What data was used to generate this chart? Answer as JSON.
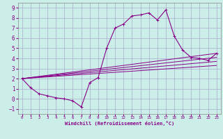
{
  "xlabel": "Windchill (Refroidissement éolien,°C)",
  "bg_color": "#cceee8",
  "grid_color": "#aaaacc",
  "line_color": "#880088",
  "xlim": [
    -0.5,
    23.5
  ],
  "ylim": [
    -1.5,
    9.5
  ],
  "xticks": [
    0,
    1,
    2,
    3,
    4,
    5,
    6,
    7,
    8,
    9,
    10,
    11,
    12,
    13,
    14,
    15,
    16,
    17,
    18,
    19,
    20,
    21,
    22,
    23
  ],
  "yticks": [
    -1,
    0,
    1,
    2,
    3,
    4,
    5,
    6,
    7,
    8,
    9
  ],
  "main_line_x": [
    0,
    1,
    2,
    3,
    4,
    5,
    6,
    7,
    8,
    9,
    10,
    11,
    12,
    13,
    14,
    15,
    16,
    17,
    18,
    19,
    20,
    21,
    22,
    23
  ],
  "main_line_y": [
    2.0,
    1.1,
    0.5,
    0.3,
    0.1,
    0.0,
    -0.2,
    -0.8,
    1.6,
    2.1,
    5.0,
    7.0,
    7.4,
    8.2,
    8.3,
    8.5,
    7.8,
    8.8,
    6.2,
    4.8,
    4.1,
    4.0,
    3.8,
    4.5
  ],
  "diag_lines": [
    {
      "x": [
        0,
        23
      ],
      "y": [
        2.0,
        4.5
      ]
    },
    {
      "x": [
        0,
        23
      ],
      "y": [
        2.0,
        4.1
      ]
    },
    {
      "x": [
        0,
        23
      ],
      "y": [
        2.0,
        3.7
      ]
    },
    {
      "x": [
        0,
        23
      ],
      "y": [
        2.0,
        3.3
      ]
    }
  ]
}
